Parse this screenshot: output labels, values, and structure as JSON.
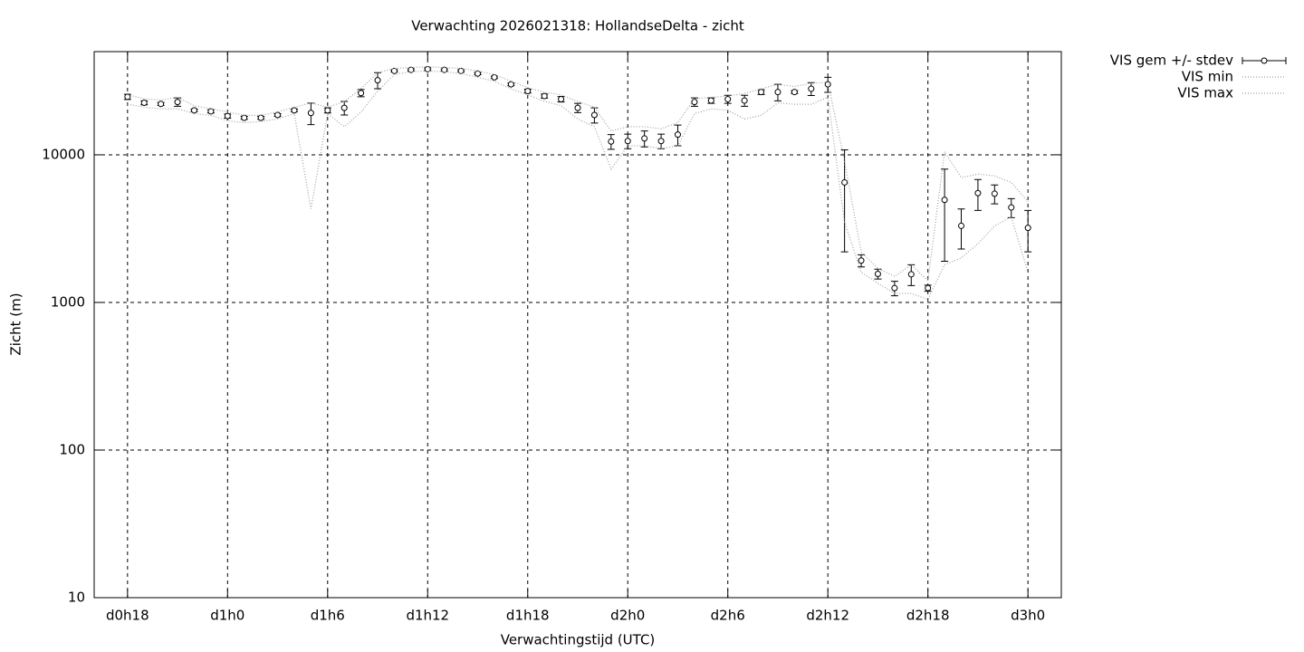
{
  "chart_data": {
    "type": "errorbar",
    "title": "Verwachting 2026021318: HollandseDelta - zicht",
    "xlabel": "Verwachtingstijd (UTC)",
    "ylabel": "Zicht (m)",
    "ylog": true,
    "grid": true,
    "legend": "outside-top-right",
    "xlim": [
      16,
      74
    ],
    "ylim": [
      10,
      50000
    ],
    "xticks": [
      {
        "value": 18,
        "label": "d0h18"
      },
      {
        "value": 24,
        "label": "d1h0"
      },
      {
        "value": 30,
        "label": "d1h6"
      },
      {
        "value": 36,
        "label": "d1h12"
      },
      {
        "value": 42,
        "label": "d1h18"
      },
      {
        "value": 48,
        "label": "d2h0"
      },
      {
        "value": 54,
        "label": "d2h6"
      },
      {
        "value": 60,
        "label": "d2h12"
      },
      {
        "value": 66,
        "label": "d2h18"
      },
      {
        "value": 72,
        "label": "d3h0"
      }
    ],
    "yticks": [
      10,
      100,
      1000,
      10000
    ],
    "x": [
      18,
      19,
      20,
      21,
      22,
      23,
      24,
      25,
      26,
      27,
      28,
      29,
      30,
      31,
      32,
      33,
      34,
      35,
      36,
      37,
      38,
      39,
      40,
      41,
      42,
      43,
      44,
      45,
      46,
      47,
      48,
      49,
      50,
      51,
      52,
      53,
      54,
      55,
      56,
      57,
      58,
      59,
      60,
      61,
      62,
      63,
      64,
      65,
      66,
      67,
      68,
      69,
      70,
      71,
      72
    ],
    "series": [
      {
        "name": "VIS gem +/- stdev",
        "color": "#000000",
        "values": [
          24700,
          22500,
          22100,
          22800,
          20000,
          19700,
          18300,
          17800,
          17800,
          18600,
          20000,
          19200,
          20000,
          20800,
          26200,
          32000,
          37000,
          37600,
          38000,
          37600,
          37000,
          35500,
          33500,
          30000,
          27000,
          25000,
          23800,
          20800,
          18600,
          12300,
          12400,
          12900,
          12400,
          13700,
          22800,
          23300,
          23800,
          23300,
          26600,
          26600,
          26600,
          28000,
          30000,
          6500,
          1920,
          1560,
          1250,
          1550,
          1250,
          4950,
          3300,
          5500,
          5450,
          4400,
          3200
        ],
        "errors": [
          1000,
          700,
          500,
          1500,
          400,
          500,
          600,
          400,
          400,
          400,
          400,
          3200,
          800,
          2200,
          1500,
          4000,
          600,
          600,
          800,
          600,
          600,
          600,
          600,
          600,
          800,
          800,
          1000,
          1500,
          2200,
          1400,
          1400,
          1600,
          1400,
          2200,
          1500,
          1000,
          1500,
          2000,
          1000,
          3400,
          600,
          2800,
          3500,
          4300,
          180,
          120,
          140,
          250,
          60,
          3050,
          1000,
          1300,
          800,
          650,
          1000
        ]
      },
      {
        "name": "VIS min",
        "color": "#a0a0a0",
        "values": [
          22000,
          21000,
          20500,
          20500,
          19000,
          18500,
          17000,
          16500,
          16800,
          17500,
          19000,
          4300,
          19000,
          15500,
          19500,
          27000,
          35000,
          36500,
          37000,
          36500,
          35500,
          33500,
          31500,
          28000,
          25500,
          23000,
          21500,
          17500,
          15500,
          8000,
          11500,
          11500,
          11000,
          11500,
          19000,
          20500,
          20000,
          17500,
          18500,
          22500,
          22000,
          22000,
          24500,
          3500,
          1600,
          1350,
          1150,
          1150,
          1050,
          1800,
          2000,
          2500,
          3300,
          3800,
          1600
        ]
      },
      {
        "name": "VIS max",
        "color": "#a0a0a0",
        "values": [
          25500,
          24000,
          23500,
          24500,
          21500,
          20500,
          19500,
          18500,
          18500,
          19500,
          21000,
          22500,
          21000,
          23000,
          28000,
          36000,
          38500,
          39000,
          39500,
          39000,
          38500,
          37000,
          35000,
          31500,
          28500,
          26500,
          25500,
          23000,
          21000,
          14500,
          15500,
          15500,
          15000,
          16500,
          24000,
          24500,
          25000,
          26000,
          28000,
          30000,
          29000,
          30500,
          31000,
          9000,
          2200,
          1700,
          1500,
          1800,
          1400,
          10500,
          7000,
          7400,
          7200,
          6500,
          4800
        ]
      }
    ]
  }
}
